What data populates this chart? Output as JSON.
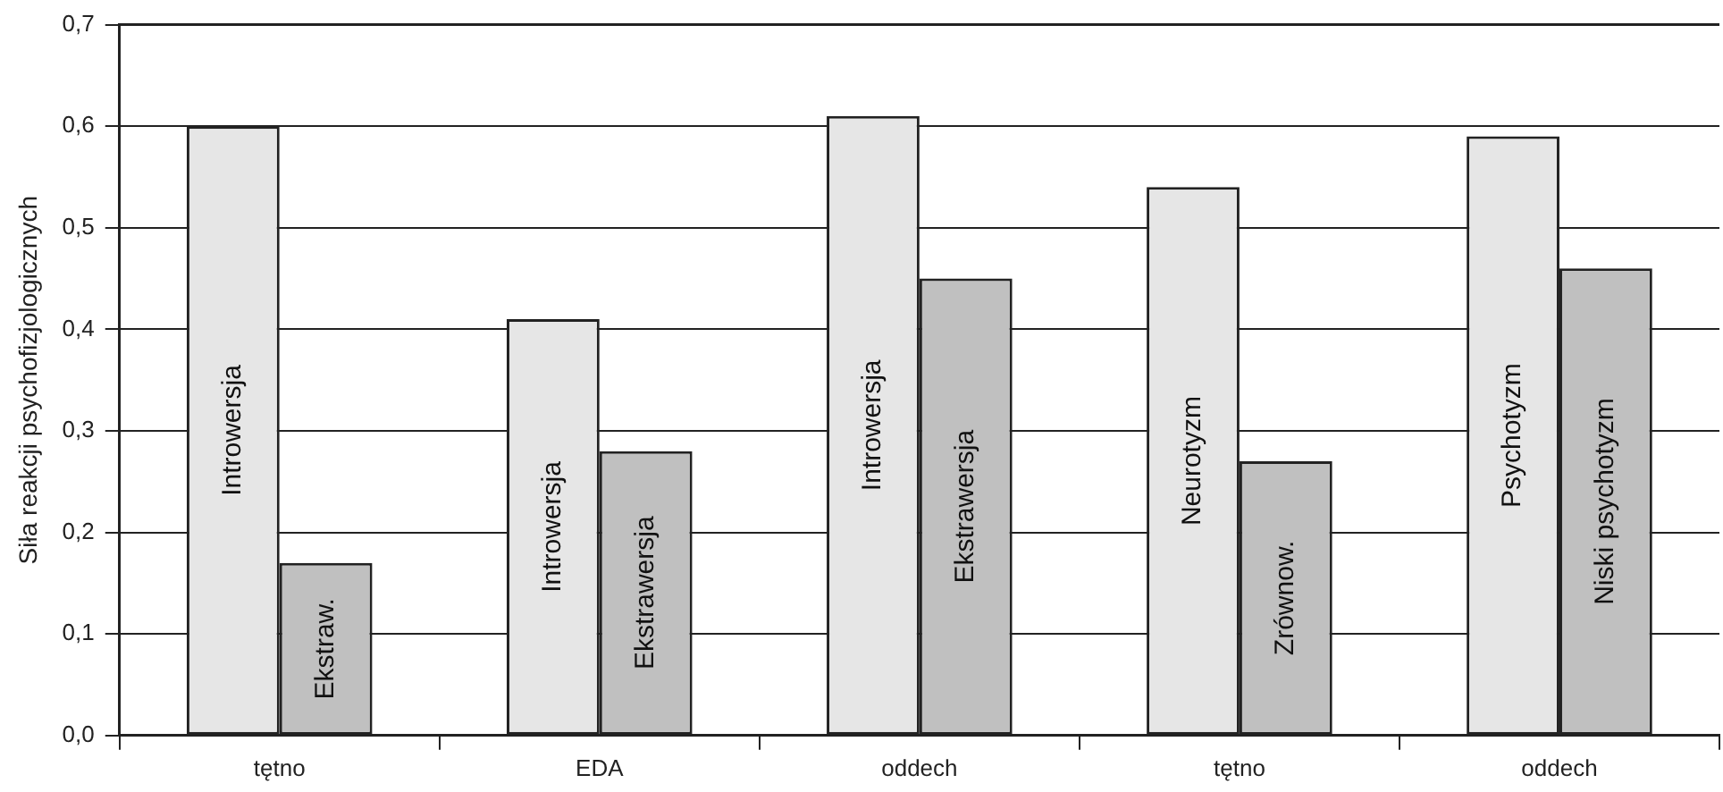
{
  "chart_data": {
    "type": "bar",
    "ylabel": "Siła reakcji psychofizjologicznych",
    "categories": [
      "tętno",
      "EDA",
      "oddech",
      "tętno",
      "oddech"
    ],
    "series": [
      {
        "color": "#e6e6e6",
        "values": [
          0.6,
          0.41,
          0.61,
          0.54,
          0.59
        ],
        "value_labels": [
          "Introwersja",
          "Introwersja",
          "Introwersja",
          "Neurotyzm",
          "Psychotyzm"
        ]
      },
      {
        "color": "#c0c0c0",
        "values": [
          0.17,
          0.28,
          0.45,
          0.27,
          0.46
        ],
        "value_labels": [
          "Ekstraw.",
          "Ekstrawersja",
          "Ekstrawersja",
          "Zrównow.",
          "Niski psychotyzm"
        ]
      }
    ],
    "ylim": [
      0,
      0.7
    ],
    "yticks": [
      {
        "value": 0,
        "label": "0,0"
      },
      {
        "value": 0.1,
        "label": "0,1"
      },
      {
        "value": 0.2,
        "label": "0,2"
      },
      {
        "value": 0.3,
        "label": "0,3"
      },
      {
        "value": 0.4,
        "label": "0,4"
      },
      {
        "value": 0.5,
        "label": "0,5"
      },
      {
        "value": 0.6,
        "label": "0,6"
      },
      {
        "value": 0.7,
        "label": "0,7"
      }
    ],
    "grid": "y",
    "legend": false
  }
}
